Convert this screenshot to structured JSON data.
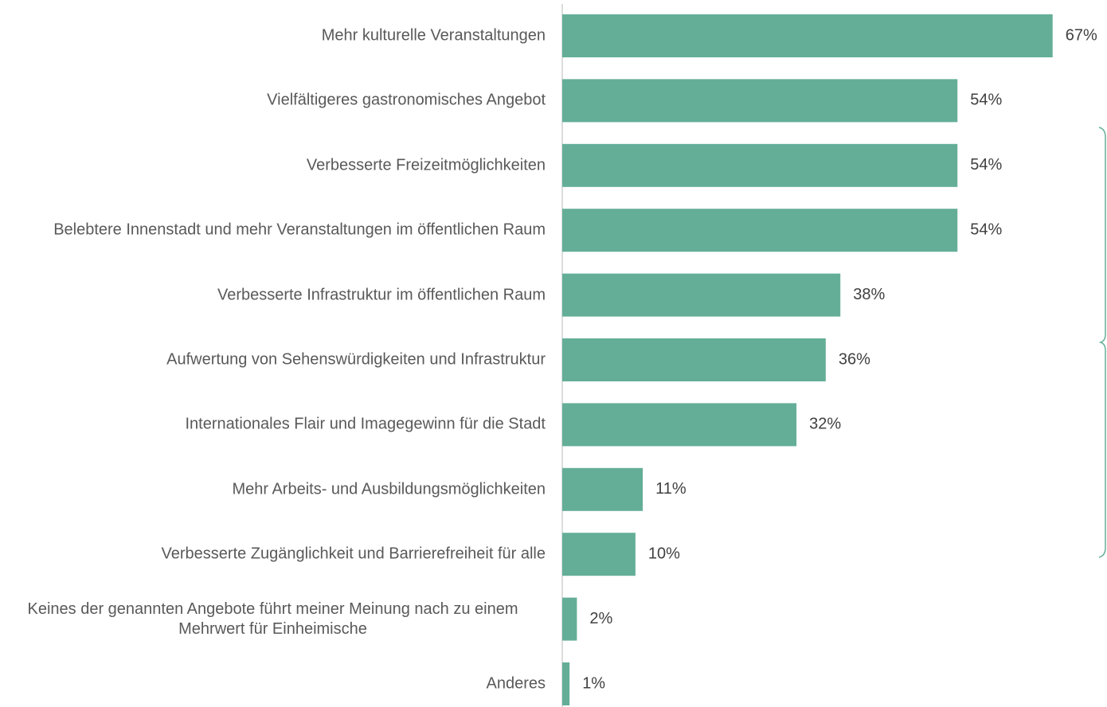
{
  "chart_data": {
    "type": "bar",
    "orientation": "horizontal",
    "color": "#64ae98",
    "categories": [
      "Mehr kulturelle Veranstaltungen",
      "Vielfältigeres gastronomisches Angebot",
      "Verbesserte Freizeitmöglichkeiten",
      "Belebtere Innenstadt und mehr Veranstaltungen im öffentlichen Raum",
      "Verbesserte Infrastruktur im öffentlichen Raum",
      "Aufwertung von Sehenswürdigkeiten und Infrastruktur",
      "Internationales Flair und Imagegewinn für die Stadt",
      "Mehr Arbeits- und Ausbildungsmöglichkeiten",
      "Verbesserte Zugänglichkeit und Barrierefreiheit für alle",
      "Keines der genannten Angebote führt meiner Meinung nach zu einem Mehrwert für Einheimische",
      "Anderes"
    ],
    "values": [
      67,
      54,
      54,
      54,
      38,
      36,
      32,
      11,
      10,
      2,
      1
    ],
    "value_labels": [
      "67%",
      "54%",
      "54%",
      "54%",
      "38%",
      "36%",
      "32%",
      "11%",
      "10%",
      "2%",
      "1%"
    ]
  }
}
